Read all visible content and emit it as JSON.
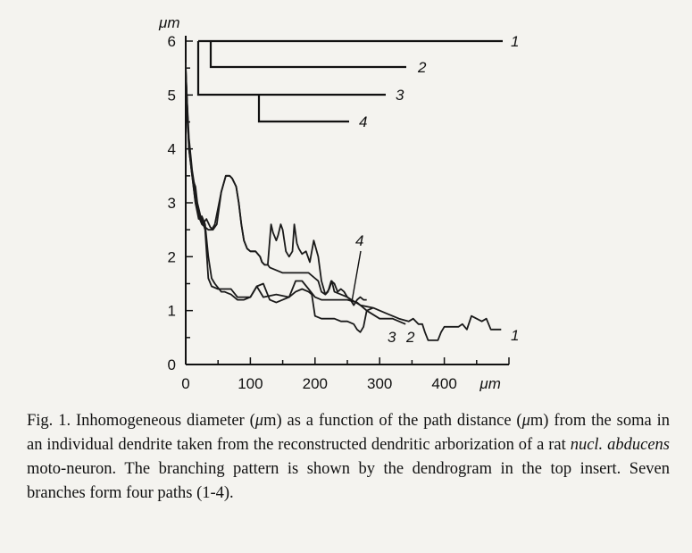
{
  "chart_data": {
    "type": "line",
    "title": "",
    "y_unit": "μm",
    "x_unit": "μm",
    "xlim": [
      0,
      500
    ],
    "ylim": [
      0,
      6
    ],
    "x_ticks": [
      0,
      100,
      200,
      300,
      400
    ],
    "y_ticks": [
      0,
      1,
      2,
      3,
      4,
      5,
      6
    ],
    "grid": false,
    "series": [
      {
        "name": "1",
        "x": [
          0,
          1,
          3,
          5,
          7,
          9,
          12,
          15,
          18,
          22,
          26,
          32,
          38,
          42,
          48,
          55,
          62,
          68,
          72,
          78,
          82,
          86,
          90,
          95,
          100,
          108,
          115,
          118,
          122,
          127,
          130,
          132,
          135,
          140,
          143,
          147,
          150,
          155,
          160,
          165,
          168,
          172,
          175,
          180,
          186,
          192,
          198,
          205,
          210,
          216,
          222,
          226,
          230,
          240,
          250,
          270,
          290,
          310,
          320,
          330,
          345,
          352,
          360,
          366,
          370,
          375,
          380,
          390,
          395,
          400,
          410,
          422,
          428,
          435,
          442,
          450,
          458,
          465,
          472,
          480,
          488
        ],
        "y": [
          5.6,
          5.0,
          4.4,
          4.1,
          3.9,
          3.6,
          3.4,
          3.3,
          3.0,
          2.8,
          2.6,
          2.7,
          2.55,
          2.5,
          2.6,
          3.2,
          3.5,
          3.5,
          3.45,
          3.3,
          3.0,
          2.6,
          2.3,
          2.15,
          2.1,
          2.1,
          2.0,
          1.9,
          1.85,
          1.85,
          2.3,
          2.6,
          2.45,
          2.3,
          2.4,
          2.6,
          2.5,
          2.1,
          2.0,
          2.1,
          2.6,
          2.25,
          2.15,
          2.05,
          2.1,
          1.9,
          2.3,
          2.0,
          1.55,
          1.3,
          1.4,
          1.55,
          1.35,
          1.3,
          1.25,
          1.1,
          1.05,
          0.95,
          0.9,
          0.85,
          0.8,
          0.85,
          0.75,
          0.75,
          0.6,
          0.45,
          0.45,
          0.45,
          0.6,
          0.7,
          0.7,
          0.7,
          0.75,
          0.65,
          0.9,
          0.85,
          0.8,
          0.85,
          0.65,
          0.65,
          0.65
        ]
      },
      {
        "name": "2",
        "x": [
          0,
          5,
          10,
          15,
          20,
          25,
          30,
          35,
          40,
          50,
          60,
          70,
          80,
          100,
          105,
          110,
          120,
          140,
          160,
          170,
          180,
          190,
          200,
          210,
          230,
          250,
          265,
          270,
          280,
          300,
          320,
          340
        ],
        "y": [
          5.4,
          4.2,
          3.6,
          3.2,
          2.8,
          2.7,
          2.5,
          1.6,
          1.45,
          1.4,
          1.4,
          1.4,
          1.25,
          1.25,
          1.35,
          1.45,
          1.25,
          1.3,
          1.25,
          1.55,
          1.55,
          1.4,
          1.25,
          1.2,
          1.2,
          1.2,
          1.15,
          1.1,
          1.0,
          0.85,
          0.85,
          0.75
        ]
      },
      {
        "name": "3",
        "x": [
          0,
          5,
          10,
          15,
          20,
          25,
          30,
          35,
          40,
          45,
          55,
          60,
          70,
          80,
          90,
          100,
          110,
          120,
          125,
          130,
          140,
          150,
          160,
          170,
          180,
          190,
          195,
          200,
          210,
          220,
          230,
          240,
          250,
          260,
          265,
          270,
          275,
          280,
          290
        ],
        "y": [
          5.5,
          4.0,
          3.5,
          3.0,
          2.7,
          2.75,
          2.6,
          2.0,
          1.6,
          1.5,
          1.35,
          1.35,
          1.3,
          1.2,
          1.2,
          1.25,
          1.45,
          1.5,
          1.35,
          1.2,
          1.15,
          1.2,
          1.25,
          1.35,
          1.4,
          1.35,
          1.3,
          0.9,
          0.85,
          0.85,
          0.85,
          0.8,
          0.8,
          0.75,
          0.65,
          0.6,
          0.7,
          1.0,
          1.05
        ]
      },
      {
        "name": "4",
        "x": [
          0,
          5,
          10,
          15,
          20,
          25,
          30,
          35,
          40,
          45,
          55,
          62,
          68,
          72,
          78,
          82,
          86,
          90,
          95,
          100,
          108,
          115,
          118,
          122,
          127,
          130,
          150,
          170,
          190,
          200,
          205,
          210,
          216,
          220,
          225,
          230,
          235,
          240,
          245,
          250,
          255,
          260,
          265,
          270,
          275,
          280
        ],
        "y": [
          5.5,
          4.0,
          3.5,
          3.0,
          2.75,
          2.6,
          2.55,
          2.5,
          2.5,
          2.6,
          3.2,
          3.5,
          3.5,
          3.45,
          3.3,
          3.0,
          2.6,
          2.3,
          2.15,
          2.1,
          2.1,
          2.0,
          1.9,
          1.85,
          1.85,
          1.8,
          1.7,
          1.7,
          1.7,
          1.6,
          1.55,
          1.35,
          1.3,
          1.35,
          1.55,
          1.5,
          1.35,
          1.4,
          1.35,
          1.25,
          1.2,
          1.1,
          1.2,
          1.25,
          1.2,
          1.2
        ]
      }
    ],
    "dendrogram": {
      "labels": [
        "1",
        "2",
        "3",
        "4"
      ]
    }
  },
  "caption": {
    "part1": "Fig. 1. Inhomogeneous diameter (",
    "mu1": "μ",
    "part2": "m) as a function of the path distance (",
    "mu2": "μ",
    "part3": "m) from the soma in an individual dendrite taken from the reconstructed dendritic arborization of a rat ",
    "italic": "nucl. abducens",
    "part4": " moto-neuron. The branching pattern is shown by the dendrogram in the top insert. Seven branches form four paths (1-4)."
  }
}
